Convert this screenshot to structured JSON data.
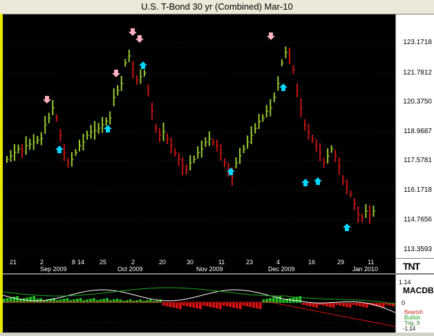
{
  "window": {
    "title": "U.S. T-Bond 30 yr (Combined) Mar-10"
  },
  "price_axis": {
    "labels": [
      "123.1718",
      "121.7812",
      "120.3750",
      "118.9687",
      "117.5781",
      "116.1718",
      "114.7656",
      "113.3593"
    ]
  },
  "date_axis": {
    "days": [
      "21",
      "2",
      "8",
      "14",
      "25",
      "2",
      "20",
      "30",
      "11",
      "23",
      "4",
      "16",
      "29",
      "11"
    ],
    "months": [
      "Sep 2009",
      "Oct 2009",
      "Nov 2009",
      "Dec 2009",
      "Jan 2010"
    ]
  },
  "logo": {
    "text": "TNT"
  },
  "macd": {
    "label": "MACDB",
    "top_value": "1.14",
    "zero": "0",
    "bottom_value": "-1.14",
    "legend": {
      "bearish": "Bearish",
      "bullish": "Bullish",
      "trig": "Trig. 9"
    }
  },
  "colors": {
    "up": "#9acd32",
    "down": "#c81414",
    "arrow_up": "#00d8ff",
    "arrow_down": "#ffb0c0",
    "background": "#000000"
  }
}
